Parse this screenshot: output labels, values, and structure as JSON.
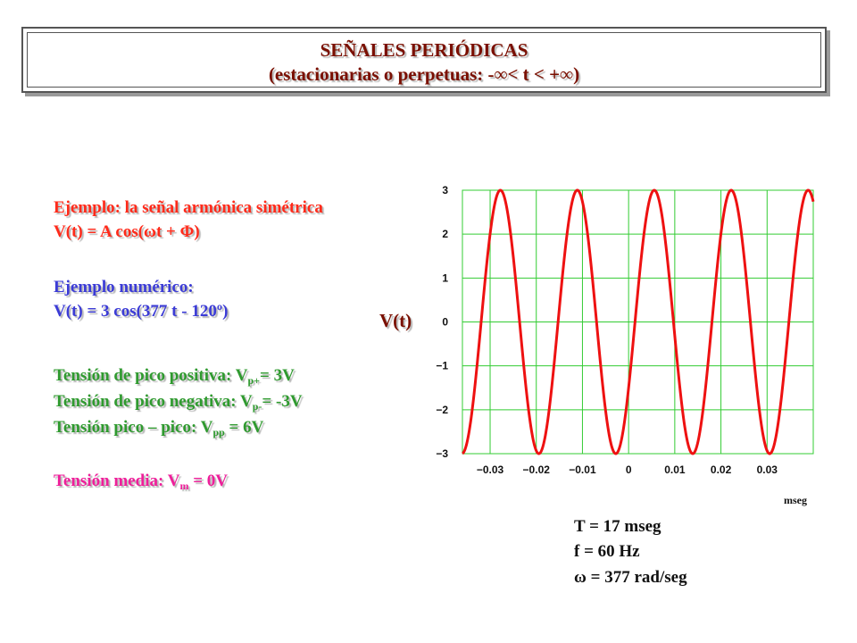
{
  "slide": {
    "title_line1": "SEÑALES PERIÓDICAS",
    "title_line2": "(estacionarias o perpetuas: -∞< t < +∞)"
  },
  "text": {
    "example_title": "Ejemplo: la señal armónica simétrica",
    "general_formula": "V(t) = A cos(ωt + Φ)",
    "numeric_title": "Ejemplo numérico:",
    "numeric_formula": "V(t) = 3 cos(377 t - 120º)",
    "peak_pos_prefix": "Tensión de pico positiva: V",
    "peak_pos_sub": "p+",
    "peak_pos_suffix": "= 3V",
    "peak_neg_prefix": "Tensión de pico negativa: V",
    "peak_neg_sub": "p-",
    "peak_neg_suffix": "= -3V",
    "pp_prefix": "Tensión pico – pico: V",
    "pp_sub": "pp",
    "pp_suffix": " = 6V",
    "mean_prefix": "Tensión media: V",
    "mean_sub": "m",
    "mean_suffix": " = 0V"
  },
  "info": {
    "period": "T = 17 mseg",
    "frequency": "f = 60 Hz",
    "omega": "ω = 377 rad/seg"
  },
  "colors": {
    "curve": "#ee1111",
    "grid": "#33cc33",
    "frame": "#33cc33",
    "title": "#7a0f00"
  },
  "chart_data": {
    "type": "line",
    "ylabel": "V(t)",
    "xlabel": "mseg",
    "x_ticks": [
      "−0.03",
      "−0.02",
      "−0.01",
      "0",
      "0.01",
      "0.02",
      "0.03"
    ],
    "y_ticks": [
      "3",
      "2",
      "1",
      "0",
      "−1",
      "−2",
      "−3"
    ],
    "xlim": [
      -0.036,
      0.04
    ],
    "ylim": [
      -3,
      3
    ],
    "grid": true,
    "series": [
      {
        "function": "3*cos(377*t - 120º)",
        "amplitude": 3,
        "omega": 377,
        "phase_deg": -120
      }
    ]
  }
}
